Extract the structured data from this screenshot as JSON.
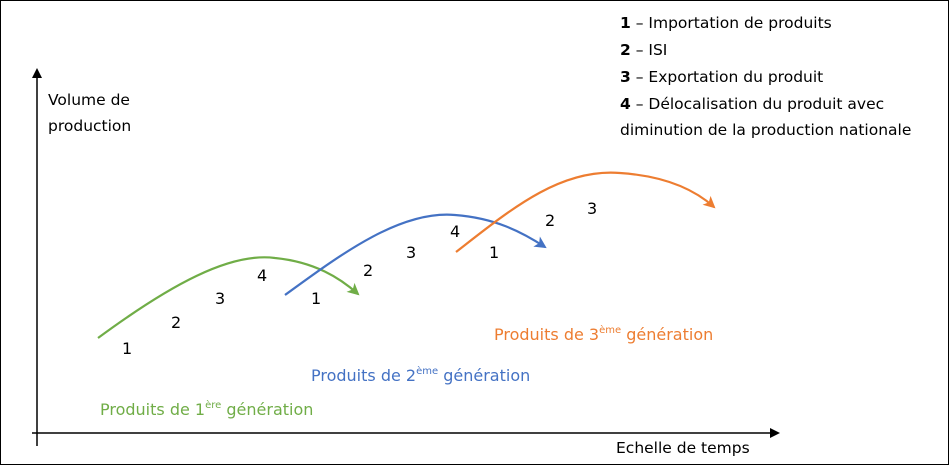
{
  "axes": {
    "y_label_line1": "Volume de",
    "y_label_line2": "production",
    "x_label": "Echelle de temps"
  },
  "legend": [
    {
      "num": "1",
      "text": " – Importation de produits"
    },
    {
      "num": "2",
      "text": " – ISI"
    },
    {
      "num": "3",
      "text": " – Exportation du produit"
    },
    {
      "num": "4",
      "text": " – Délocalisation du produit avec"
    },
    {
      "num": "",
      "text": "diminution de la production nationale"
    }
  ],
  "generations": [
    {
      "prefix": "Produits de 1",
      "sup": "ère",
      "suffix": " génération",
      "color": "#70AD47"
    },
    {
      "prefix": "Produits de 2",
      "sup": "ème",
      "suffix": " génération",
      "color": "#4472C4"
    },
    {
      "prefix": "Produits de 3",
      "sup": "ème",
      "suffix": " génération",
      "color": "#ED7D31"
    }
  ],
  "stage_numbers": {
    "gen1": [
      "1",
      "2",
      "3",
      "4"
    ],
    "gen2": [
      "1",
      "2",
      "3",
      "4"
    ],
    "gen3": [
      "1",
      "2",
      "3"
    ]
  }
}
